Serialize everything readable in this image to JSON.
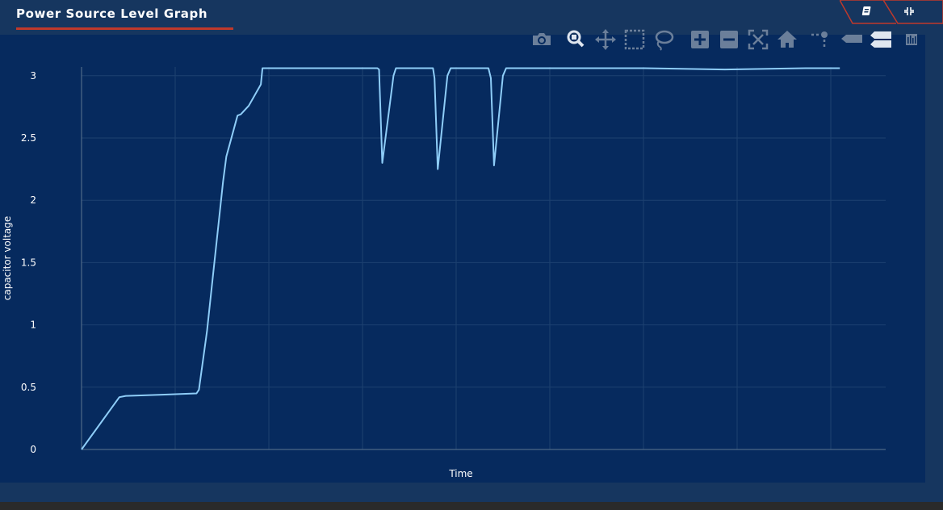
{
  "header": {
    "title": "Power Source Level Graph",
    "buttons": [
      {
        "icon": "document-icon"
      },
      {
        "icon": "collapse-icon"
      }
    ]
  },
  "modebar": [
    {
      "icon": "camera-icon",
      "tooltip": "Download plot as a png"
    },
    {
      "icon": "zoom-icon",
      "tooltip": "Zoom"
    },
    {
      "icon": "pan-icon",
      "tooltip": "Pan"
    },
    {
      "icon": "box-select-icon",
      "tooltip": "Box Select"
    },
    {
      "icon": "lasso-select-icon",
      "tooltip": "Lasso Select"
    },
    {
      "icon": "zoom-in-icon",
      "tooltip": "Zoom in"
    },
    {
      "icon": "zoom-out-icon",
      "tooltip": "Zoom out"
    },
    {
      "icon": "autoscale-icon",
      "tooltip": "Autoscale"
    },
    {
      "icon": "home-icon",
      "tooltip": "Reset axes"
    },
    {
      "icon": "spike-lines-icon",
      "tooltip": "Toggle Spike Lines"
    },
    {
      "icon": "hover-closest-icon",
      "tooltip": "Show closest data on hover"
    },
    {
      "icon": "hover-compare-icon",
      "tooltip": "Compare data on hover"
    },
    {
      "icon": "plotly-logo-icon",
      "tooltip": "Produced with Plotly"
    }
  ],
  "colors": {
    "background": "#16365f",
    "plot_background": "#062a5e",
    "line": "#8ecdf8",
    "accent": "#c0392b"
  },
  "chart_data": {
    "type": "line",
    "title": "Power Source Level Graph",
    "xlabel": "Time",
    "ylabel": "capacitor voltage",
    "ylim": [
      0,
      3.07
    ],
    "yticks": [
      0,
      0.5,
      1,
      1.5,
      2,
      2.5,
      3
    ],
    "ytick_labels": [
      "0",
      "0.5",
      "1",
      "1.5",
      "2",
      "2.5",
      "3"
    ],
    "x_tick_labels_shown": false,
    "xlim": [
      0,
      100
    ],
    "grid": true,
    "legend": false,
    "series": [
      {
        "x": [
          0,
          4.7,
          5.5,
          10,
          14.3,
          14.6,
          15.6,
          17.6,
          18,
          19.4,
          19.8,
          20.8,
          22.3,
          22.5,
          36.8,
          37,
          37.4,
          38.8,
          39.1,
          43.7,
          43.9,
          44.3,
          45.5,
          45.9,
          50.6,
          50.9,
          51.3,
          52.4,
          52.8,
          60,
          70,
          80,
          90,
          94.3
        ],
        "y": [
          0,
          0.42,
          0.43,
          0.44,
          0.45,
          0.48,
          0.95,
          2.15,
          2.35,
          2.68,
          2.69,
          2.76,
          2.93,
          3.06,
          3.06,
          3.05,
          2.3,
          3.0,
          3.06,
          3.06,
          2.98,
          2.25,
          3.0,
          3.06,
          3.06,
          2.98,
          2.28,
          3.0,
          3.06,
          3.06,
          3.06,
          3.05,
          3.06,
          3.06
        ]
      }
    ]
  }
}
